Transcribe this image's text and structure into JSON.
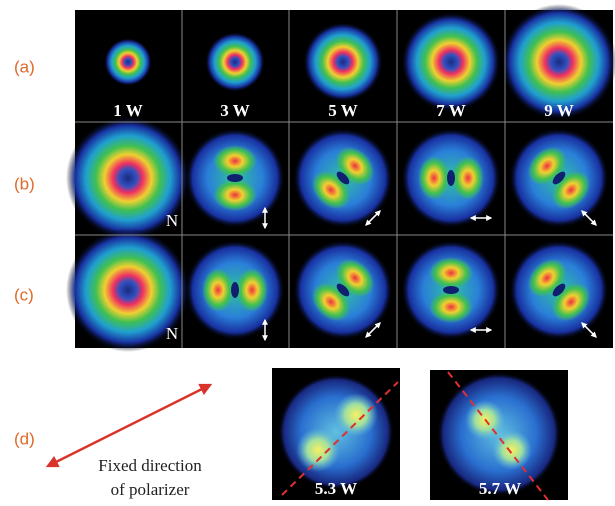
{
  "rows": [
    {
      "label": "(a)",
      "captions": [
        "1 W",
        "3 W",
        "5 W",
        "7 W",
        "9 W"
      ]
    },
    {
      "label": "(b)",
      "captions": [
        "N"
      ]
    },
    {
      "label": "(c)",
      "captions": [
        "N"
      ]
    }
  ],
  "panel_d": {
    "label": "(d)",
    "legend": [
      "Fixed direction",
      "of polarizer"
    ],
    "captions": [
      "5.3 W",
      "5.7 W"
    ]
  }
}
